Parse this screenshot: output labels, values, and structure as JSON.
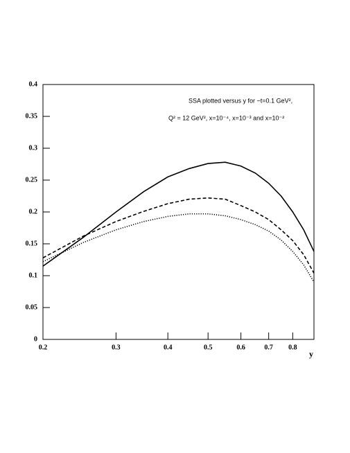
{
  "chart_data": {
    "type": "line",
    "annotation": [
      "SSA plotted versus y for −t=0.1 GeV²,",
      "Q² = 12 GeV², x=10⁻⁴, x=10⁻³ and x=10⁻²"
    ],
    "x_label": "y",
    "x": [
      0.2,
      0.25,
      0.3,
      0.35,
      0.4,
      0.45,
      0.5,
      0.55,
      0.6,
      0.65,
      0.7,
      0.75,
      0.8,
      0.85,
      0.9
    ],
    "series": [
      {
        "color": "#000000",
        "dash": "solid",
        "values": [
          0.115,
          0.16,
          0.2,
          0.232,
          0.255,
          0.268,
          0.276,
          0.278,
          0.272,
          0.261,
          0.245,
          0.225,
          0.2,
          0.172,
          0.138
        ]
      },
      {
        "color": "#000000",
        "dash": "dashed",
        "values": [
          0.128,
          0.162,
          0.185,
          0.201,
          0.213,
          0.22,
          0.222,
          0.22,
          0.21,
          0.2,
          0.188,
          0.172,
          0.155,
          0.133,
          0.104
        ]
      },
      {
        "color": "#000000",
        "dash": "dotted",
        "values": [
          0.122,
          0.152,
          0.172,
          0.185,
          0.193,
          0.197,
          0.197,
          0.194,
          0.188,
          0.18,
          0.17,
          0.156,
          0.138,
          0.117,
          0.09
        ]
      }
    ],
    "xscale": "log",
    "xlim": [
      0.2,
      0.9
    ],
    "xticks": [
      0.2,
      0.3,
      0.4,
      0.5,
      0.6,
      0.7,
      0.8
    ],
    "ylim": [
      0,
      0.4
    ],
    "yticks": [
      0,
      0.05,
      0.1,
      0.15,
      0.2,
      0.25,
      0.3,
      0.35,
      0.4
    ]
  }
}
